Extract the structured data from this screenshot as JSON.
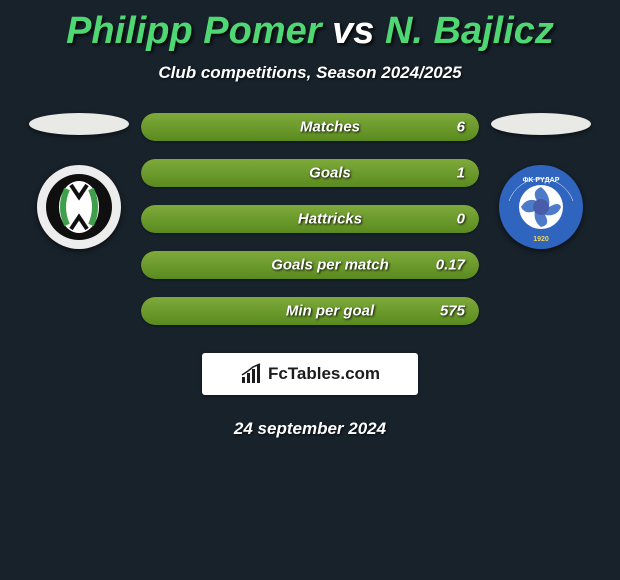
{
  "header": {
    "player_left": "Philipp Pomer",
    "vs": " vs ",
    "player_right": "N. Bajlicz",
    "subtitle": "Club competitions, Season 2024/2025",
    "left_color": "#4fd773",
    "right_color": "#4fd773"
  },
  "clubs": {
    "left": {
      "bg": "#ededed",
      "inner_bg": "#0f0f0f",
      "accent": "#3fa04c"
    },
    "right": {
      "bg": "#2f64bf",
      "inner_bg": "#ffffff",
      "accent": "#d33"
    }
  },
  "stats": {
    "fill_color_start": "#7eaa3a",
    "fill_color_end": "#5a8a1f",
    "rows": [
      {
        "label": "Matches",
        "value": "6",
        "fill_pct": 100
      },
      {
        "label": "Goals",
        "value": "1",
        "fill_pct": 100
      },
      {
        "label": "Hattricks",
        "value": "0",
        "fill_pct": 100
      },
      {
        "label": "Goals per match",
        "value": "0.17",
        "fill_pct": 100
      },
      {
        "label": "Min per goal",
        "value": "575",
        "fill_pct": 100
      }
    ]
  },
  "brand": {
    "text": "FcTables.com"
  },
  "footer": {
    "date": "24 september 2024"
  }
}
